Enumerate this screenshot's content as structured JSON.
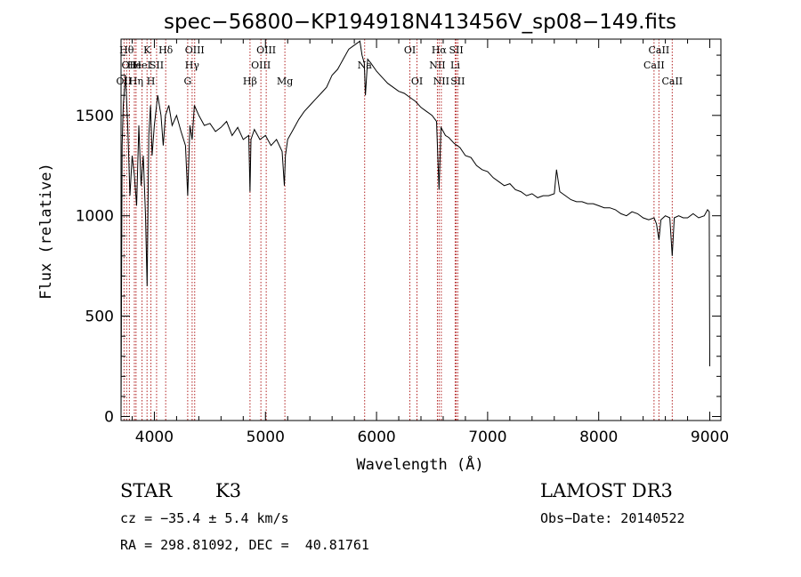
{
  "chart_data": {
    "type": "line",
    "title": "spec−56800−KP194918N413456V_sp08−149.fits",
    "xlabel": "Wavelength (Å)",
    "ylabel": "Flux (relative)",
    "xlim": [
      3700,
      9100
    ],
    "ylim": [
      -20,
      1880
    ],
    "xticks": [
      4000,
      5000,
      6000,
      7000,
      8000,
      9000
    ],
    "xtick_labels": [
      "4000",
      "5000",
      "6000",
      "7000",
      "8000",
      "9000"
    ],
    "yticks": [
      0,
      500,
      1000,
      1500
    ],
    "ytick_labels": [
      "0",
      "500",
      "1000",
      "1500"
    ],
    "series": [
      {
        "name": "flux",
        "color": "#000000",
        "x": [
          3700,
          3705,
          3710,
          3720,
          3740,
          3760,
          3780,
          3800,
          3820,
          3840,
          3860,
          3880,
          3900,
          3920,
          3935,
          3950,
          3965,
          3980,
          4000,
          4030,
          4060,
          4080,
          4100,
          4130,
          4160,
          4200,
          4240,
          4280,
          4300,
          4320,
          4340,
          4360,
          4400,
          4450,
          4500,
          4550,
          4600,
          4650,
          4700,
          4750,
          4800,
          4850,
          4861,
          4870,
          4900,
          4950,
          5000,
          5050,
          5100,
          5150,
          5170,
          5180,
          5200,
          5250,
          5300,
          5350,
          5400,
          5450,
          5500,
          5550,
          5600,
          5650,
          5700,
          5750,
          5800,
          5850,
          5870,
          5890,
          5900,
          5920,
          5950,
          6000,
          6050,
          6100,
          6150,
          6200,
          6250,
          6300,
          6350,
          6400,
          6450,
          6500,
          6540,
          6563,
          6580,
          6620,
          6650,
          6700,
          6750,
          6800,
          6850,
          6900,
          6950,
          7000,
          7050,
          7100,
          7150,
          7200,
          7250,
          7300,
          7350,
          7400,
          7450,
          7500,
          7550,
          7600,
          7620,
          7650,
          7700,
          7750,
          7800,
          7850,
          7900,
          7950,
          8000,
          8050,
          8100,
          8150,
          8200,
          8250,
          8300,
          8350,
          8400,
          8450,
          8498,
          8520,
          8542,
          8560,
          8600,
          8640,
          8662,
          8680,
          8720,
          8760,
          8800,
          8850,
          8900,
          8950,
          8980,
          8995,
          9000
        ],
        "values": [
          0,
          700,
          1350,
          1550,
          1700,
          1450,
          1100,
          1300,
          1200,
          1050,
          1450,
          1150,
          1300,
          1000,
          650,
          1400,
          1550,
          1300,
          1450,
          1600,
          1500,
          1350,
          1500,
          1550,
          1450,
          1500,
          1420,
          1350,
          1100,
          1450,
          1380,
          1550,
          1500,
          1450,
          1460,
          1420,
          1440,
          1470,
          1400,
          1440,
          1380,
          1400,
          1120,
          1380,
          1430,
          1380,
          1400,
          1350,
          1380,
          1320,
          1150,
          1300,
          1380,
          1430,
          1480,
          1520,
          1550,
          1580,
          1610,
          1640,
          1700,
          1730,
          1780,
          1830,
          1850,
          1870,
          1800,
          1760,
          1600,
          1780,
          1760,
          1720,
          1690,
          1660,
          1640,
          1620,
          1610,
          1590,
          1570,
          1540,
          1520,
          1500,
          1470,
          1130,
          1440,
          1400,
          1390,
          1360,
          1340,
          1300,
          1290,
          1250,
          1230,
          1220,
          1190,
          1170,
          1150,
          1160,
          1130,
          1120,
          1100,
          1110,
          1090,
          1100,
          1100,
          1110,
          1230,
          1120,
          1100,
          1080,
          1070,
          1070,
          1060,
          1060,
          1050,
          1040,
          1040,
          1030,
          1010,
          1000,
          1020,
          1010,
          990,
          980,
          990,
          960,
          880,
          980,
          1000,
          990,
          800,
          990,
          1000,
          990,
          990,
          1010,
          990,
          1000,
          1030,
          1020,
          250
        ]
      }
    ],
    "lines": [
      {
        "wl": 3727,
        "label": "OII",
        "row": 2
      },
      {
        "wl": 3750,
        "label": "Hθ",
        "row": 0
      },
      {
        "wl": 3775,
        "label": "OII",
        "row": 1
      },
      {
        "wl": 3820,
        "label": "He",
        "row": 1
      },
      {
        "wl": 3835,
        "label": "Hη",
        "row": 2
      },
      {
        "wl": 3889,
        "label": "HeI",
        "row": 1
      },
      {
        "wl": 3934,
        "label": "K",
        "row": 0
      },
      {
        "wl": 3969,
        "label": "H",
        "row": 2
      },
      {
        "wl": 4020,
        "label": "SII",
        "row": 1
      },
      {
        "wl": 4102,
        "label": "Hδ",
        "row": 0
      },
      {
        "wl": 4300,
        "label": "G",
        "row": 2
      },
      {
        "wl": 4340,
        "label": "Hγ",
        "row": 1
      },
      {
        "wl": 4363,
        "label": "OIII",
        "row": 0
      },
      {
        "wl": 4861,
        "label": "Hβ",
        "row": 2
      },
      {
        "wl": 4959,
        "label": "OIII",
        "row": 1
      },
      {
        "wl": 5007,
        "label": "OIII",
        "row": 0
      },
      {
        "wl": 5175,
        "label": "Mg",
        "row": 2
      },
      {
        "wl": 5893,
        "label": "Na",
        "row": 1
      },
      {
        "wl": 6300,
        "label": "OI",
        "row": 0
      },
      {
        "wl": 6364,
        "label": "OI",
        "row": 2
      },
      {
        "wl": 6548,
        "label": "NII",
        "row": 1
      },
      {
        "wl": 6563,
        "label": "Hα",
        "row": 0
      },
      {
        "wl": 6583,
        "label": "NII",
        "row": 2
      },
      {
        "wl": 6708,
        "label": "Li",
        "row": 1
      },
      {
        "wl": 6717,
        "label": "SII",
        "row": 0
      },
      {
        "wl": 6731,
        "label": "SII",
        "row": 2
      },
      {
        "wl": 8498,
        "label": "CaII",
        "row": 1
      },
      {
        "wl": 8542,
        "label": "CaII",
        "row": 0
      },
      {
        "wl": 8662,
        "label": "CaII",
        "row": 2
      }
    ]
  },
  "info": {
    "class": "STAR",
    "subclass": "K3",
    "survey": "LAMOST DR3",
    "cz": "cz = −35.4 ± 5.4 km/s",
    "obs_date": "Obs−Date: 20140522",
    "coords": "RA = 298.81092, DEC =  40.81761"
  },
  "colors": {
    "spectrum": "#000000",
    "line_markers": "#b22222",
    "axes": "#000000"
  }
}
